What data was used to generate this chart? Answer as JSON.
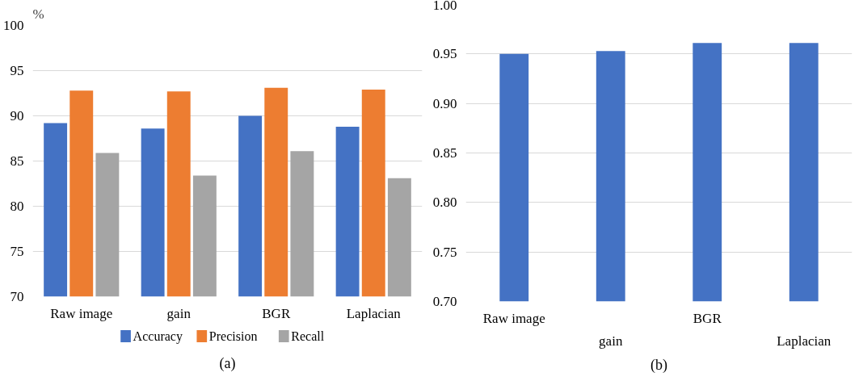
{
  "chart_data": [
    {
      "type": "bar",
      "ylabel": "%",
      "categories": [
        "Raw image",
        "gain",
        "BGR",
        "Laplacian"
      ],
      "series": [
        {
          "name": "Accuracy",
          "color": "#4472c4",
          "values": [
            89.2,
            88.6,
            90.0,
            88.8
          ]
        },
        {
          "name": "Precision",
          "color": "#ed7d31",
          "values": [
            92.8,
            92.7,
            93.1,
            92.9
          ]
        },
        {
          "name": "Recall",
          "color": "#a5a5a5",
          "values": [
            85.9,
            83.4,
            86.1,
            83.1
          ]
        }
      ],
      "ylim": [
        70,
        100
      ],
      "yticks": [
        70,
        75,
        80,
        85,
        90,
        95,
        100
      ],
      "grid": "y",
      "legend": "bottom",
      "annotations": [
        "(a)"
      ]
    },
    {
      "type": "bar",
      "categories": [
        "Raw image",
        "gain",
        "BGR",
        "Laplacian"
      ],
      "series": [
        {
          "color": "#4472c4",
          "values": [
            0.95,
            0.953,
            0.961,
            0.961
          ]
        }
      ],
      "ylim": [
        0.7,
        1.0
      ],
      "yticks": [
        {
          "value": 0.7,
          "label": "0.70"
        },
        {
          "value": 0.75,
          "label": "0.75"
        },
        {
          "value": 0.8,
          "label": "0.80"
        },
        {
          "value": 0.85,
          "label": "0.85"
        },
        {
          "value": 0.9,
          "label": "0.90"
        },
        {
          "value": 0.95,
          "label": "0.95"
        },
        {
          "value": 1.0,
          "label": "1.00"
        }
      ],
      "grid": "y",
      "annotations": [
        "(b)"
      ]
    }
  ]
}
